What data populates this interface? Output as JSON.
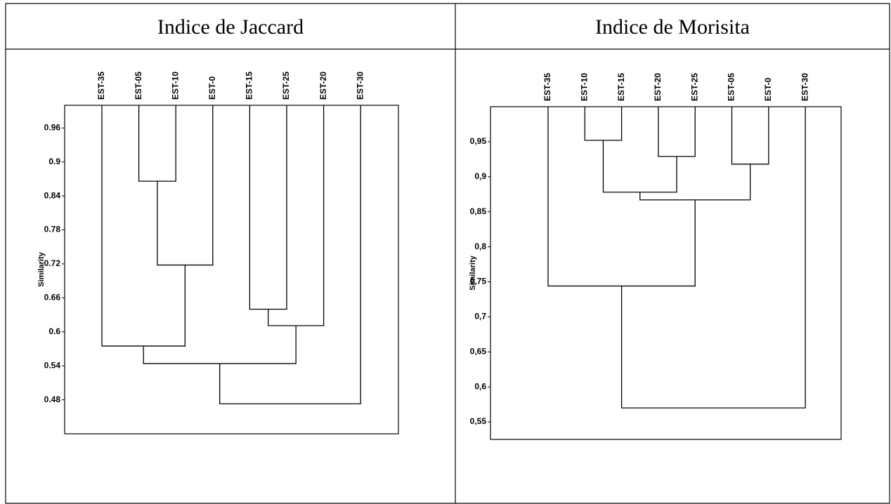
{
  "chart_data": [
    {
      "type": "dendrogram",
      "title": "Indice de Jaccard",
      "y_label": "Similarity",
      "leaves": [
        "EST-35",
        "EST-05",
        "EST-10",
        "EST-0",
        "EST-15",
        "EST-25",
        "EST-20",
        "EST-30"
      ],
      "merges": [
        {
          "children": [
            1,
            2
          ],
          "height": 0.866
        },
        {
          "children": [
            8,
            3
          ],
          "height": 0.718
        },
        {
          "children": [
            4,
            5
          ],
          "height": 0.64
        },
        {
          "children": [
            10,
            6
          ],
          "height": 0.611
        },
        {
          "children": [
            0,
            9
          ],
          "height": 0.575
        },
        {
          "children": [
            12,
            11
          ],
          "height": 0.544
        },
        {
          "children": [
            13,
            7
          ],
          "height": 0.473
        }
      ],
      "ylim": [
        0.42,
        1.0
      ],
      "yticks": [
        0.96,
        0.9,
        0.84,
        0.78,
        0.72,
        0.66,
        0.6,
        0.54,
        0.48
      ],
      "color": "#000000"
    },
    {
      "type": "dendrogram",
      "title": "Indice de Morisita",
      "y_label": "Similarity",
      "leaves": [
        "EST-35",
        "EST-10",
        "EST-15",
        "EST-20",
        "EST-25",
        "EST-05",
        "EST-0",
        "EST-30"
      ],
      "merges": [
        {
          "children": [
            1,
            2
          ],
          "height": 0.952
        },
        {
          "children": [
            3,
            4
          ],
          "height": 0.929
        },
        {
          "children": [
            5,
            6
          ],
          "height": 0.918
        },
        {
          "children": [
            8,
            9
          ],
          "height": 0.878
        },
        {
          "children": [
            11,
            10
          ],
          "height": 0.867
        },
        {
          "children": [
            0,
            12
          ],
          "height": 0.744
        },
        {
          "children": [
            13,
            7
          ],
          "height": 0.57
        }
      ],
      "ylim": [
        0.525,
        1.0
      ],
      "yticks": [
        {
          "value": 0.95,
          "label": "0,95"
        },
        {
          "value": 0.9,
          "label": "0,9"
        },
        {
          "value": 0.85,
          "label": "0,85"
        },
        {
          "value": 0.8,
          "label": "0,8"
        },
        {
          "value": 0.75,
          "label": "0,75"
        },
        {
          "value": 0.7,
          "label": "0,7"
        },
        {
          "value": 0.65,
          "label": "0,65"
        },
        {
          "value": 0.6,
          "label": "0,6"
        },
        {
          "value": 0.55,
          "label": "0,55"
        }
      ],
      "color": "#000000"
    }
  ]
}
